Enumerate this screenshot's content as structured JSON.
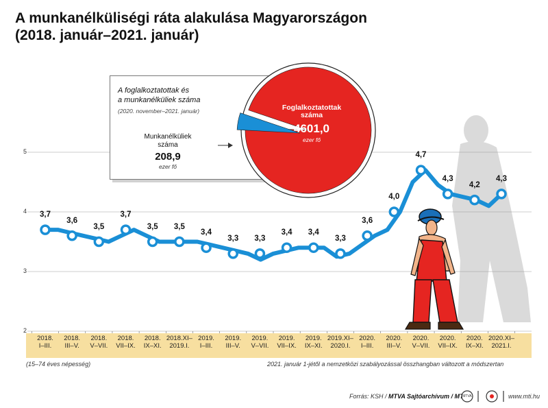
{
  "title": {
    "line1": "A munkanélküliségi ráta alakulása Magyarországon",
    "line2": "(2018. január–2021. január)"
  },
  "chart_data": {
    "type": "line",
    "categories": [
      [
        "2018.",
        "I–III."
      ],
      [
        "2018.",
        "III–V."
      ],
      [
        "2018.",
        "V–VII."
      ],
      [
        "2018.",
        "VII–IX."
      ],
      [
        "2018.",
        "IX–XI."
      ],
      [
        "2018.XI–",
        "2019.I."
      ],
      [
        "2019.",
        "I–III."
      ],
      [
        "2019.",
        "III–V."
      ],
      [
        "2019.",
        "V–VII."
      ],
      [
        "2019.",
        "VII–IX."
      ],
      [
        "2019.",
        "IX–XI."
      ],
      [
        "2019.XI–",
        "2020.I."
      ],
      [
        "2020.",
        "I–III."
      ],
      [
        "2020.",
        "III–V."
      ],
      [
        "2020.",
        "V–VII."
      ],
      [
        "2020.",
        "VII–IX."
      ],
      [
        "2020.",
        "IX–XI."
      ],
      [
        "2020.XI–",
        "2021.I."
      ]
    ],
    "labeled_values": [
      3.7,
      3.6,
      3.5,
      3.7,
      3.5,
      3.5,
      3.4,
      3.3,
      3.3,
      3.4,
      3.4,
      3.3,
      3.6,
      4.0,
      4.7,
      4.3,
      4.2,
      4.3
    ],
    "labeled_text": [
      "3,7",
      "3,6",
      "3,5",
      "3,7",
      "3,5",
      "3,5",
      "3,4",
      "3,3",
      "3,3",
      "3,4",
      "3,4",
      "3,3",
      "3,6",
      "4,0",
      "4,7",
      "4,3",
      "4,2",
      "4,3"
    ],
    "monthly_series": [
      3.7,
      3.7,
      3.65,
      3.6,
      3.55,
      3.5,
      3.6,
      3.7,
      3.6,
      3.5,
      3.5,
      3.5,
      3.5,
      3.45,
      3.4,
      3.35,
      3.3,
      3.2,
      3.3,
      3.35,
      3.4,
      3.4,
      3.4,
      3.25,
      3.3,
      3.45,
      3.6,
      3.7,
      4.0,
      4.5,
      4.7,
      4.45,
      4.3,
      4.25,
      4.2,
      4.1,
      4.3
    ],
    "yticks": [
      "5",
      "4",
      "3",
      "2"
    ],
    "ylim": [
      2,
      5
    ],
    "line_color": "#1a8fd6",
    "point_color": "#1a8fd6"
  },
  "inset": {
    "title_line1": "A foglalkoztatottak és",
    "title_line2": "a munkanélküliek száma",
    "period": "(2020. november–2021. január)",
    "employed_label_line1": "Foglalkoztatottak",
    "employed_label_line2": "száma",
    "employed_value": "4601,0",
    "employed_unit": "ezer fő",
    "unemployed_label_line1": "Munkanélküliek",
    "unemployed_label_line2": "száma",
    "unemployed_value": "208,9",
    "unemployed_unit": "ezer fő",
    "pie": {
      "employed": 4601.0,
      "unemployed": 208.9
    },
    "employed_color": "#e52521",
    "unemployed_color": "#1a8fd6"
  },
  "notes": {
    "population": "(15–74 éves népesség)",
    "method": "2021. január 1-jétől a nemzetközi szabályozással összhangban változott a módszertan"
  },
  "footer": {
    "source_prefix": "Forrás: KSH / ",
    "source_bold": "MTVA Sajtóarchívum / MTI",
    "logo_text": "MTVA",
    "website": "www.mti.hu"
  }
}
